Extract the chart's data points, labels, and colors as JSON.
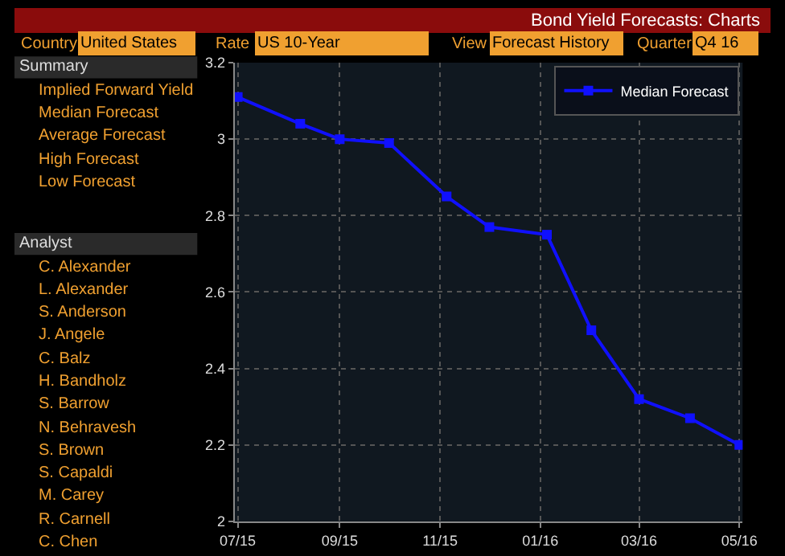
{
  "chart_data": {
    "type": "line",
    "title": "Bond Yield Forecasts: Charts",
    "annotations": [
      "Country",
      "United States",
      "Rate",
      "US 10-Year",
      "View",
      "Forecast History",
      "Quarter",
      "Q4 16",
      "Summary",
      "Implied Forward Yield",
      "Median Forecast",
      "Average Forecast",
      "High Forecast",
      "Low Forecast",
      "Analyst",
      "C. Alexander",
      "L. Alexander",
      "S. Anderson",
      "J. Angele",
      "C. Balz",
      "H. Bandholz",
      "S. Barrow",
      "N. Behravesh",
      "S. Brown",
      "S. Capaldi",
      "M. Carey",
      "R. Carnell",
      "C. Chen"
    ],
    "x": [
      "2015-07-01",
      "2015-08-08",
      "2015-09-01",
      "2015-10-01",
      "2015-11-05",
      "2015-12-01",
      "2016-01-05",
      "2016-02-01",
      "2016-03-01",
      "2016-04-01",
      "2016-05-01"
    ],
    "series": [
      {
        "name": "Median Forecast",
        "color": "#1010ff",
        "values": [
          3.11,
          3.04,
          3.0,
          2.99,
          2.85,
          2.77,
          2.75,
          2.5,
          2.32,
          2.27,
          2.2
        ]
      }
    ],
    "xlim": [
      "2015-06-29",
      "2016-05-03"
    ],
    "xticks": [
      {
        "value": "2015-07-01",
        "label": "07/15"
      },
      {
        "value": "2015-09-01",
        "label": "09/15"
      },
      {
        "value": "2015-11-01",
        "label": "11/15"
      },
      {
        "value": "2016-01-01",
        "label": "01/16"
      },
      {
        "value": "2016-03-01",
        "label": "03/16"
      },
      {
        "value": "2016-05-01",
        "label": "05/16"
      }
    ],
    "ylim": [
      2,
      3.2
    ],
    "yticks": [
      2,
      2.2,
      2.4,
      2.6,
      2.8,
      3,
      3.2
    ],
    "grid": true,
    "legend": "top right",
    "marker": "square",
    "line_style": "solid"
  }
}
